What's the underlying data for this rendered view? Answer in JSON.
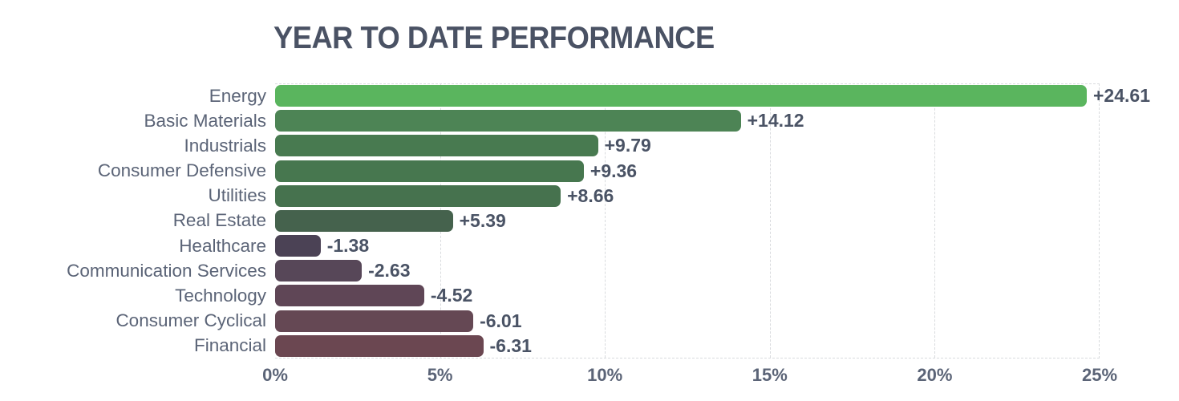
{
  "title": "YEAR TO DATE PERFORMANCE",
  "colors": {
    "background": "#ffffff",
    "title_text": "#4a5264",
    "category_text": "#5b6477",
    "value_text": "#4a5365",
    "axis_text": "#5b6477",
    "gridline": "#d9dbde"
  },
  "chart_data": {
    "type": "bar",
    "orientation": "horizontal",
    "title": "YEAR TO DATE PERFORMANCE",
    "categories": [
      "Energy",
      "Basic Materials",
      "Industrials",
      "Consumer Defensive",
      "Utilities",
      "Real Estate",
      "Healthcare",
      "Communication Services",
      "Technology",
      "Consumer Cyclical",
      "Financial"
    ],
    "values": [
      24.61,
      14.12,
      9.79,
      9.36,
      8.66,
      5.39,
      -1.38,
      -2.63,
      -4.52,
      -6.01,
      -6.31
    ],
    "value_labels": [
      "+24.61",
      "+14.12",
      "+9.79",
      "+9.36",
      "+8.66",
      "+5.39",
      "-1.38",
      "-2.63",
      "-4.52",
      "-6.01",
      "-6.31"
    ],
    "bar_colors": [
      "#5ab55e",
      "#4d8455",
      "#487a50",
      "#47774f",
      "#46724e",
      "#45624d",
      "#4b4255",
      "#574758",
      "#5f4656",
      "#654854",
      "#6b4751"
    ],
    "bars_use_absolute_value": true,
    "xlabel": "",
    "ylabel": "",
    "xlim": [
      0,
      25
    ],
    "x_ticks": [
      0,
      5,
      10,
      15,
      20,
      25
    ],
    "x_tick_labels": [
      "0%",
      "5%",
      "10%",
      "15%",
      "20%",
      "25%"
    ],
    "grid": "dashed vertical gridlines at each x tick; dashed top and bottom plot borders",
    "legend": "none"
  }
}
